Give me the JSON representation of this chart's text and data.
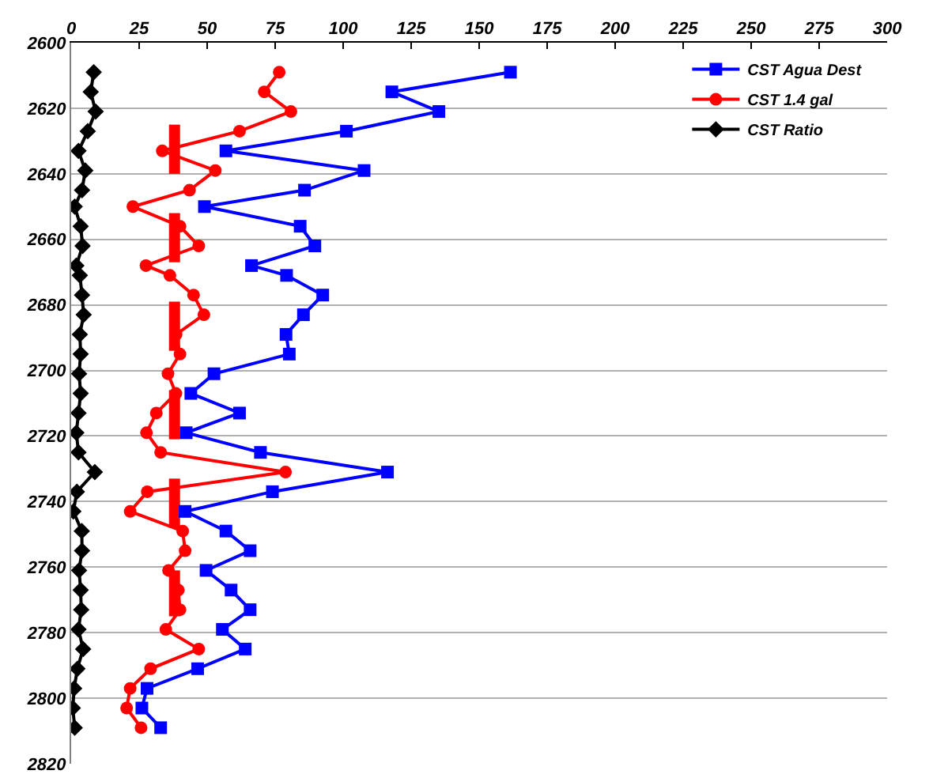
{
  "chart_data": {
    "type": "line",
    "orientation": "horizontal",
    "xlim": [
      0,
      300
    ],
    "xticks": [
      0,
      25,
      50,
      75,
      100,
      125,
      150,
      175,
      200,
      225,
      250,
      275,
      300
    ],
    "ylim": [
      2820,
      2600
    ],
    "yticks": [
      2600,
      2620,
      2640,
      2660,
      2680,
      2700,
      2720,
      2740,
      2760,
      2780,
      2800,
      2820
    ],
    "grid": "y",
    "legend": "top right",
    "x": [
      2609,
      2615,
      2621,
      2627,
      2633,
      2639,
      2645,
      2650,
      2656,
      2662,
      2668,
      2671,
      2677,
      2683,
      2689,
      2695,
      2701,
      2707,
      2713,
      2719,
      2725,
      2731,
      2737,
      2743,
      2749,
      2755,
      2761,
      2767,
      2773,
      2779,
      2785,
      2791,
      2797,
      2803,
      2809
    ],
    "series": [
      {
        "name": "CST Agua Dest",
        "color": "#0000ff",
        "marker": "square",
        "values": [
          161.5,
          117.9,
          135.2,
          101.2,
          56.9,
          107.7,
          85.8,
          49,
          84.2,
          89.6,
          66.3,
          79.2,
          92.5,
          85.4,
          79,
          80.2,
          52.5,
          44,
          61.9,
          42.3,
          69.6,
          116.3,
          74,
          41.9,
          56.9,
          65.8,
          49.6,
          58.8,
          65.8,
          55.6,
          64,
          46.5,
          27.9,
          26,
          32.9
        ]
      },
      {
        "name": "CST 1.4 gal",
        "color": "#ff0000",
        "marker": "circle",
        "values": [
          76.5,
          71,
          80.8,
          61.9,
          33.5,
          53,
          43.5,
          22.7,
          40,
          46.9,
          27.5,
          36.3,
          45,
          48.8,
          38.6,
          40,
          35.6,
          38.5,
          31.3,
          27.7,
          32.9,
          78.8,
          28,
          21.7,
          41,
          41.9,
          35.8,
          39.4,
          40,
          34.8,
          46.9,
          29.2,
          21.7,
          20.4,
          25.7
        ]
      },
      {
        "name": "CST Ratio",
        "color": "#000000",
        "marker": "diamond",
        "values": [
          8.3,
          7.2,
          9,
          6.1,
          2.7,
          5.2,
          4,
          1.3,
          3.5,
          4.2,
          1.9,
          3.2,
          4,
          4.6,
          3.2,
          3.5,
          2.9,
          3.5,
          2.7,
          1.9,
          2.7,
          8.7,
          2.1,
          0.8,
          3.9,
          4,
          2.9,
          3.5,
          3.7,
          2.7,
          4.4,
          2.3,
          1.1,
          0.6,
          1.3
        ]
      },
      {
        "color": "#ff0000",
        "marker": "none",
        "x": [
          2625,
          2640,
          2646,
          2652,
          2667,
          2673,
          2679,
          2694,
          2700,
          2706,
          2721,
          2727,
          2733,
          2748,
          2754,
          2761,
          2775
        ],
        "values": [
          38,
          38,
          null,
          38,
          38,
          null,
          38,
          38,
          null,
          38,
          38,
          null,
          38,
          38,
          null,
          38,
          38
        ]
      }
    ]
  }
}
